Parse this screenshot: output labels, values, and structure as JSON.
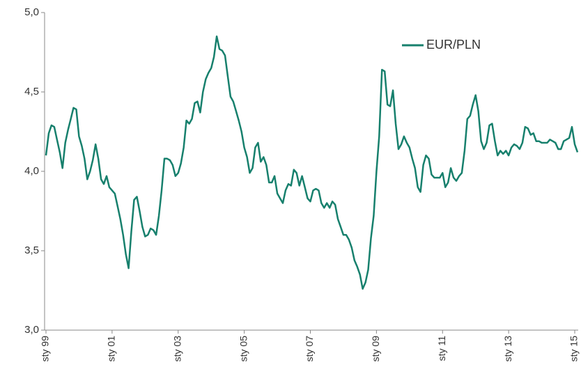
{
  "chart_data": {
    "type": "line",
    "categories": [
      "sty 99",
      null,
      null,
      null,
      null,
      null,
      null,
      null,
      null,
      null,
      null,
      null,
      null,
      null,
      null,
      null,
      null,
      null,
      null,
      null,
      null,
      null,
      null,
      null,
      "sty 01",
      null,
      null,
      null,
      null,
      null,
      null,
      null,
      null,
      null,
      null,
      null,
      null,
      null,
      null,
      null,
      null,
      null,
      null,
      null,
      null,
      null,
      null,
      null,
      "sty 03",
      null,
      null,
      null,
      null,
      null,
      null,
      null,
      null,
      null,
      null,
      null,
      null,
      null,
      null,
      null,
      null,
      null,
      null,
      null,
      null,
      null,
      null,
      null,
      "sty 05",
      null,
      null,
      null,
      null,
      null,
      null,
      null,
      null,
      null,
      null,
      null,
      null,
      null,
      null,
      null,
      null,
      null,
      null,
      null,
      null,
      null,
      null,
      null,
      "sty 07",
      null,
      null,
      null,
      null,
      null,
      null,
      null,
      null,
      null,
      null,
      null,
      null,
      null,
      null,
      null,
      null,
      null,
      null,
      null,
      null,
      null,
      null,
      null,
      "sty 09",
      null,
      null,
      null,
      null,
      null,
      null,
      null,
      null,
      null,
      null,
      null,
      null,
      null,
      null,
      null,
      null,
      null,
      null,
      null,
      null,
      null,
      null,
      null,
      "sty 11",
      null,
      null,
      null,
      null,
      null,
      null,
      null,
      null,
      null,
      null,
      null,
      null,
      null,
      null,
      null,
      null,
      null,
      null,
      null,
      null,
      null,
      null,
      null,
      "sty 13",
      null,
      null,
      null,
      null,
      null,
      null,
      null,
      null,
      null,
      null,
      null,
      null,
      null,
      null,
      null,
      null,
      null,
      null,
      null,
      null,
      null,
      null,
      null,
      "sty 15",
      null
    ],
    "series": [
      {
        "name": "EUR/PLN",
        "color": "#17806d",
        "values": [
          4.1,
          4.24,
          4.29,
          4.28,
          4.2,
          4.12,
          4.02,
          4.18,
          4.26,
          4.33,
          4.4,
          4.39,
          4.22,
          4.16,
          4.08,
          3.95,
          4.0,
          4.07,
          4.17,
          4.08,
          3.95,
          3.92,
          3.97,
          3.9,
          3.88,
          3.86,
          3.78,
          3.7,
          3.6,
          3.48,
          3.39,
          3.62,
          3.82,
          3.84,
          3.75,
          3.65,
          3.59,
          3.6,
          3.64,
          3.63,
          3.6,
          3.72,
          3.88,
          4.08,
          4.08,
          4.07,
          4.04,
          3.97,
          3.99,
          4.05,
          4.15,
          4.32,
          4.3,
          4.33,
          4.43,
          4.44,
          4.37,
          4.5,
          4.58,
          4.62,
          4.65,
          4.72,
          4.85,
          4.77,
          4.76,
          4.73,
          4.6,
          4.47,
          4.44,
          4.38,
          4.32,
          4.25,
          4.15,
          4.09,
          3.99,
          4.02,
          4.15,
          4.18,
          4.06,
          4.09,
          4.04,
          3.93,
          3.93,
          3.97,
          3.86,
          3.83,
          3.8,
          3.88,
          3.92,
          3.91,
          4.01,
          3.99,
          3.91,
          3.97,
          3.9,
          3.83,
          3.81,
          3.88,
          3.89,
          3.88,
          3.8,
          3.77,
          3.8,
          3.77,
          3.81,
          3.79,
          3.7,
          3.65,
          3.6,
          3.6,
          3.57,
          3.52,
          3.44,
          3.4,
          3.35,
          3.26,
          3.3,
          3.38,
          3.58,
          3.72,
          4.0,
          4.22,
          4.64,
          4.63,
          4.42,
          4.41,
          4.51,
          4.3,
          4.14,
          4.17,
          4.22,
          4.18,
          4.15,
          4.08,
          4.02,
          3.9,
          3.87,
          4.04,
          4.1,
          4.08,
          3.98,
          3.96,
          3.96,
          3.96,
          3.99,
          3.9,
          3.93,
          4.02,
          3.96,
          3.94,
          3.97,
          3.99,
          4.13,
          4.33,
          4.35,
          4.42,
          4.48,
          4.38,
          4.19,
          4.14,
          4.18,
          4.29,
          4.3,
          4.19,
          4.1,
          4.13,
          4.11,
          4.13,
          4.1,
          4.15,
          4.17,
          4.16,
          4.14,
          4.18,
          4.28,
          4.27,
          4.23,
          4.24,
          4.19,
          4.19,
          4.18,
          4.18,
          4.18,
          4.2,
          4.19,
          4.18,
          4.14,
          4.14,
          4.19,
          4.2,
          4.21,
          4.28,
          4.17,
          4.12
        ]
      }
    ],
    "ylim": [
      3,
      5
    ],
    "yticks": [
      {
        "value": 3,
        "label": "3,0"
      },
      {
        "value": 3.5,
        "label": "3,5"
      },
      {
        "value": 4,
        "label": "4,0"
      },
      {
        "value": 4.5,
        "label": "4,5"
      },
      {
        "value": 5,
        "label": "5,0"
      }
    ],
    "grid": false,
    "legend": "top-right"
  }
}
